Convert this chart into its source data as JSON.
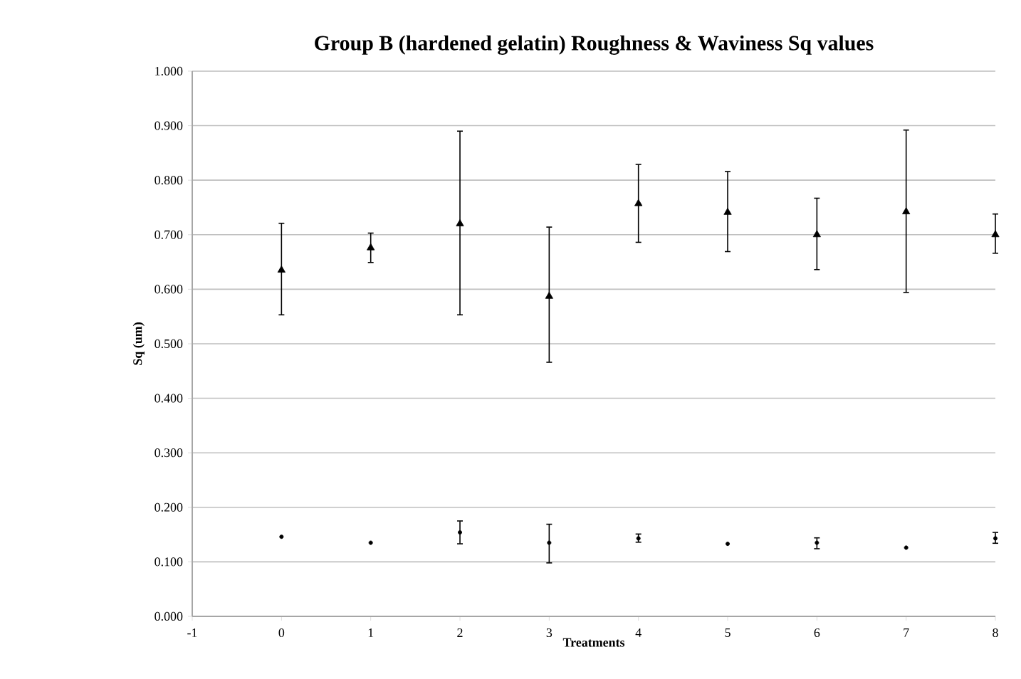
{
  "chart_data": {
    "type": "scatter",
    "title": "Group B (hardened gelatin) Roughness & Waviness Sq values",
    "xlabel": "Treatments",
    "ylabel": "Sq (um)",
    "xlim": [
      -1,
      8
    ],
    "xticks": [
      -1,
      0,
      1,
      2,
      3,
      4,
      5,
      6,
      7,
      8
    ],
    "ylim": [
      0,
      1
    ],
    "yticks": [
      {
        "value": 0,
        "label": "0.000"
      },
      {
        "value": 0.1,
        "label": "0.100"
      },
      {
        "value": 0.2,
        "label": "0.200"
      },
      {
        "value": 0.3,
        "label": "0.300"
      },
      {
        "value": 0.4,
        "label": "0.400"
      },
      {
        "value": 0.5,
        "label": "0.500"
      },
      {
        "value": 0.6,
        "label": "0.600"
      },
      {
        "value": 0.7,
        "label": "0.700"
      },
      {
        "value": 0.8,
        "label": "0.800"
      },
      {
        "value": 0.9,
        "label": "0.900"
      },
      {
        "value": 1,
        "label": "1.000"
      }
    ],
    "grid": "y",
    "series": [
      {
        "color": "#000000",
        "marker": "triangle",
        "x": [
          0,
          1,
          2,
          3,
          4,
          5,
          6,
          7,
          8
        ],
        "values": [
          0.635,
          0.676,
          0.72,
          0.587,
          0.757,
          0.741,
          0.7,
          0.742,
          0.7
        ],
        "errors": [
          [
            0.552,
            0.722
          ],
          [
            0.648,
            0.704
          ],
          [
            0.552,
            0.891
          ],
          [
            0.465,
            0.715
          ],
          [
            0.685,
            0.83
          ],
          [
            0.668,
            0.817
          ],
          [
            0.635,
            0.768
          ],
          [
            0.593,
            0.893
          ],
          [
            0.665,
            0.739
          ]
        ]
      },
      {
        "color": "#000000",
        "marker": "circle",
        "x": [
          0,
          1,
          2,
          3,
          4,
          5,
          6,
          7,
          8
        ],
        "values": [
          0.146,
          0.135,
          0.154,
          0.135,
          0.143,
          0.133,
          0.135,
          0.126,
          0.143
        ],
        "errors": [
          null,
          null,
          [
            0.132,
            0.176
          ],
          [
            0.097,
            0.17
          ],
          [
            0.135,
            0.152
          ],
          null,
          [
            0.123,
            0.145
          ],
          null,
          [
            0.133,
            0.155
          ]
        ]
      }
    ]
  }
}
